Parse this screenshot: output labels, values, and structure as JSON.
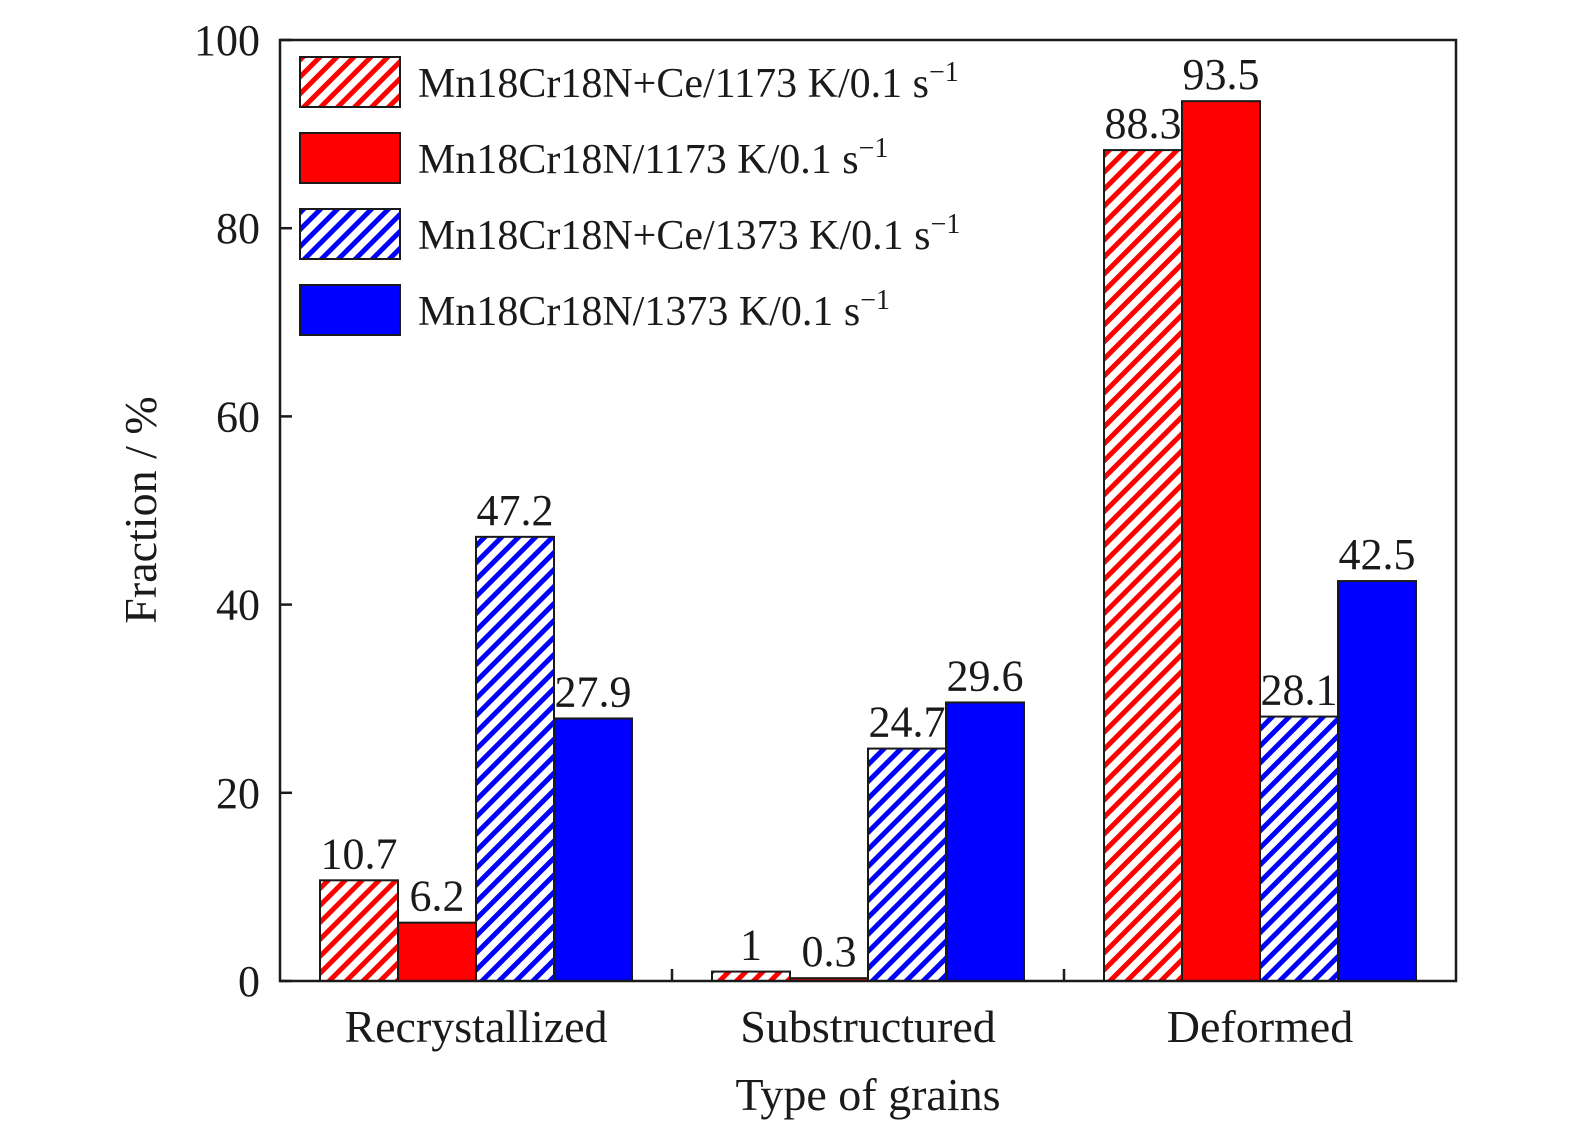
{
  "chart_data": {
    "type": "bar",
    "xlabel": "Type of grains",
    "ylabel": "Fraction / %",
    "ylim": [
      0,
      100
    ],
    "yticks": [
      "0",
      "20",
      "40",
      "60",
      "80",
      "100"
    ],
    "categories": [
      "Recrystallized",
      "Substructured",
      "Deformed"
    ],
    "legend_position": "top-left",
    "series": [
      {
        "name": "Mn18Cr18N+Ce/1173 K/0.1 s",
        "unit_superscript": "−1",
        "color": "#ff0000",
        "pattern": "hatched",
        "values": [
          10.7,
          1,
          88.3
        ],
        "labels": [
          "10.7",
          "1",
          "88.3"
        ]
      },
      {
        "name": "Mn18Cr18N/1173 K/0.1 s",
        "unit_superscript": "−1",
        "color": "#ff0000",
        "pattern": "solid",
        "values": [
          6.2,
          0.3,
          93.5
        ],
        "labels": [
          "6.2",
          "0.3",
          "93.5"
        ]
      },
      {
        "name": "Mn18Cr18N+Ce/1373 K/0.1 s",
        "unit_superscript": "−1",
        "color": "#0000ff",
        "pattern": "hatched",
        "values": [
          47.2,
          24.7,
          28.1
        ],
        "labels": [
          "47.2",
          "24.7",
          "28.1"
        ]
      },
      {
        "name": "Mn18Cr18N/1373 K/0.1 s",
        "unit_superscript": "−1",
        "color": "#0000ff",
        "pattern": "solid",
        "values": [
          27.9,
          29.6,
          42.5
        ],
        "labels": [
          "27.9",
          "29.6",
          "42.5"
        ]
      }
    ]
  }
}
